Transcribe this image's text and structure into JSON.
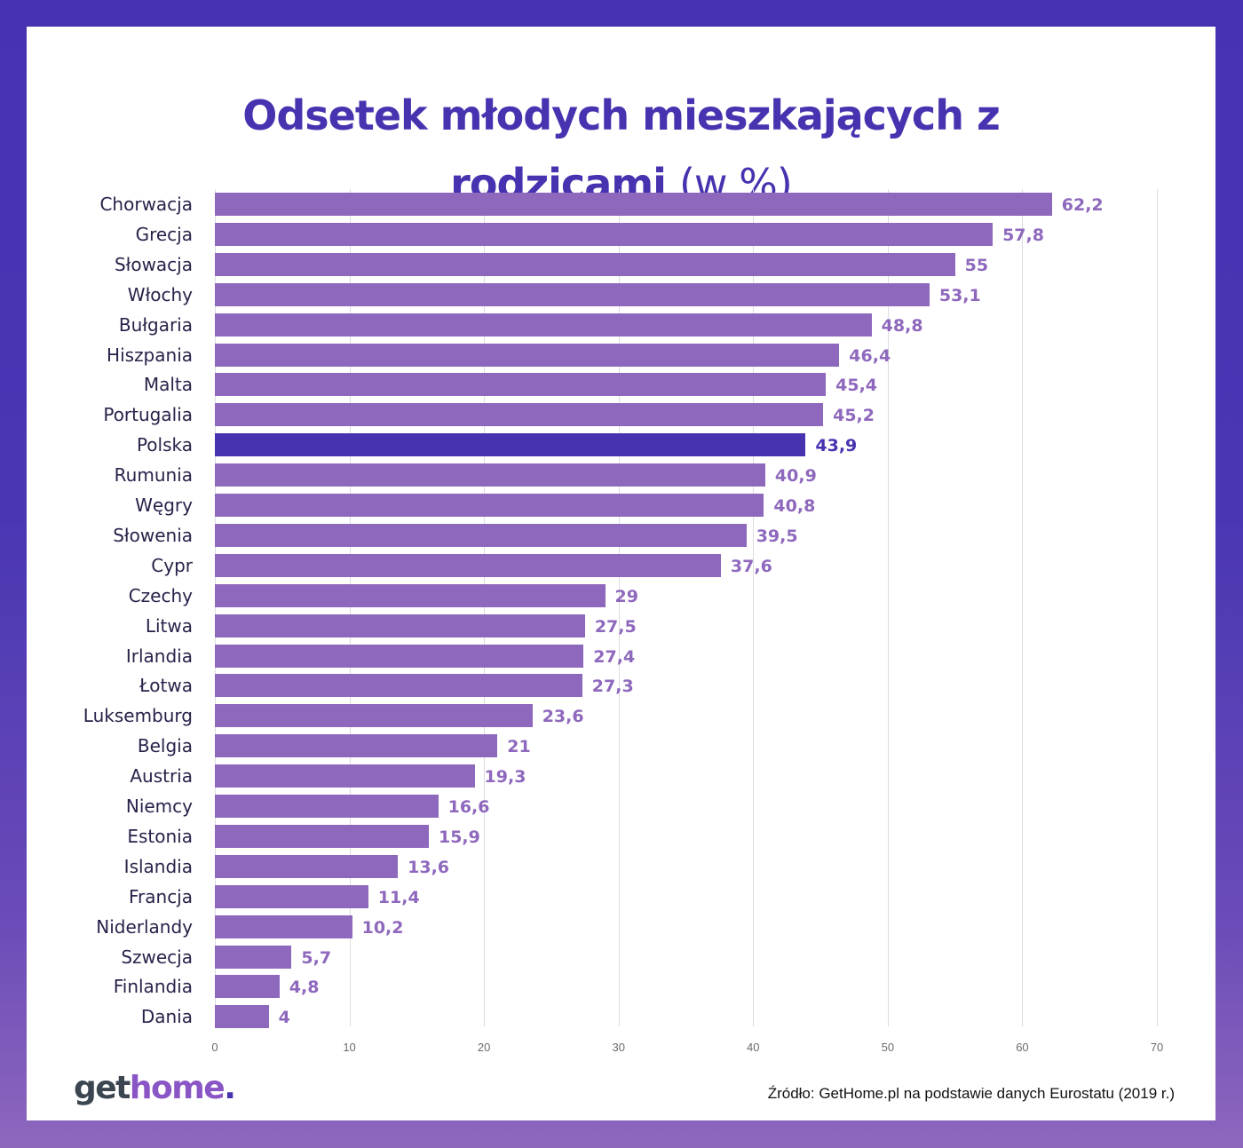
{
  "title": {
    "bold": "Odsetek młodych mieszkających z rodzicami",
    "bold_line1": "Odsetek młodych mieszkających z",
    "bold_line2": "rodzicami",
    "light": "(w %)"
  },
  "colors": {
    "bar": "#8e68bd",
    "highlight_bar": "#4733b0",
    "title": "#4733b0",
    "frame_top": "#4733b2",
    "frame_bottom": "#8e67bd"
  },
  "footer": {
    "logo_get": "get",
    "logo_home": "home",
    "logo_dot": ".",
    "source": "Źródło: GetHome.pl na podstawie danych Eurostatu (2019 r.)"
  },
  "chart_data": {
    "type": "bar",
    "orientation": "horizontal",
    "title": "Odsetek młodych mieszkających z rodzicami (w %)",
    "xlabel": "",
    "ylabel": "",
    "xlim": [
      0,
      70
    ],
    "xticks": [
      0,
      10,
      20,
      30,
      40,
      50,
      60,
      70
    ],
    "grid": true,
    "legend": null,
    "highlight": "Polska",
    "categories": [
      "Chorwacja",
      "Grecja",
      "Słowacja",
      "Włochy",
      "Bułgaria",
      "Hiszpania",
      "Malta",
      "Portugalia",
      "Polska",
      "Rumunia",
      "Węgry",
      "Słowenia",
      "Cypr",
      "Czechy",
      "Litwa",
      "Irlandia",
      "Łotwa",
      "Luksemburg",
      "Belgia",
      "Austria",
      "Niemcy",
      "Estonia",
      "Islandia",
      "Francja",
      "Niderlandy",
      "Szwecja",
      "Finlandia",
      "Dania"
    ],
    "values": [
      62.2,
      57.8,
      55,
      53.1,
      48.8,
      46.4,
      45.4,
      45.2,
      43.9,
      40.9,
      40.8,
      39.5,
      37.6,
      29,
      27.5,
      27.4,
      27.3,
      23.6,
      21,
      19.3,
      16.6,
      15.9,
      13.6,
      11.4,
      10.2,
      5.7,
      4.8,
      4
    ],
    "value_labels": [
      "62,2",
      "57,8",
      "55",
      "53,1",
      "48,8",
      "46,4",
      "45,4",
      "45,2",
      "43,9",
      "40,9",
      "40,8",
      "39,5",
      "37,6",
      "29",
      "27,5",
      "27,4",
      "27,3",
      "23,6",
      "21",
      "19,3",
      "16,6",
      "15,9",
      "13,6",
      "11,4",
      "10,2",
      "5,7",
      "4,8",
      "4"
    ]
  }
}
